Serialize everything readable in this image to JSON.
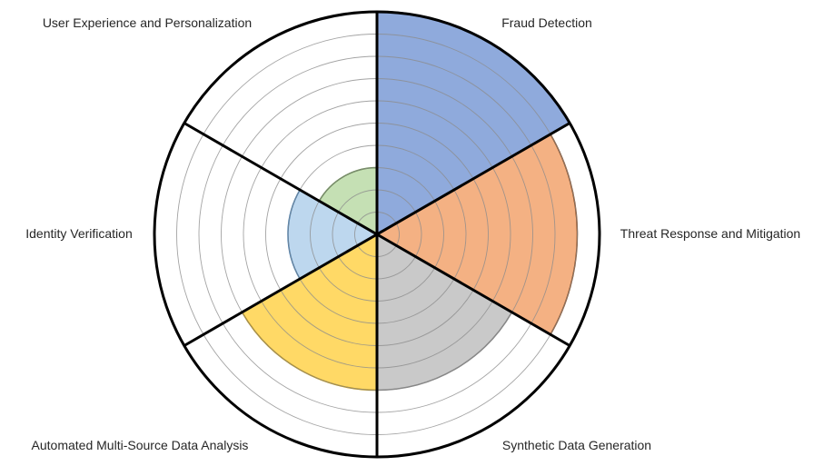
{
  "chart_data": {
    "type": "polar-area",
    "categories": [
      "Fraud Detection",
      "Threat Response and Mitigation",
      "Synthetic Data Generation",
      "Automated Multi-Source Data Analysis",
      "Identity Verification",
      "User Experience and Personalization"
    ],
    "values": [
      10,
      9,
      7,
      7,
      4,
      3
    ],
    "rlim": [
      0,
      10
    ],
    "grid": true,
    "legend": "none",
    "colors": [
      "#8faadc",
      "#f4b183",
      "#c9c9c9",
      "#ffd966",
      "#bdd7ee",
      "#c5e0b4"
    ],
    "border_colors": [
      "#1f3864",
      "#843c0c",
      "#7f7f7f",
      "#bf9000",
      "#2e75b6",
      "#548235"
    ]
  }
}
